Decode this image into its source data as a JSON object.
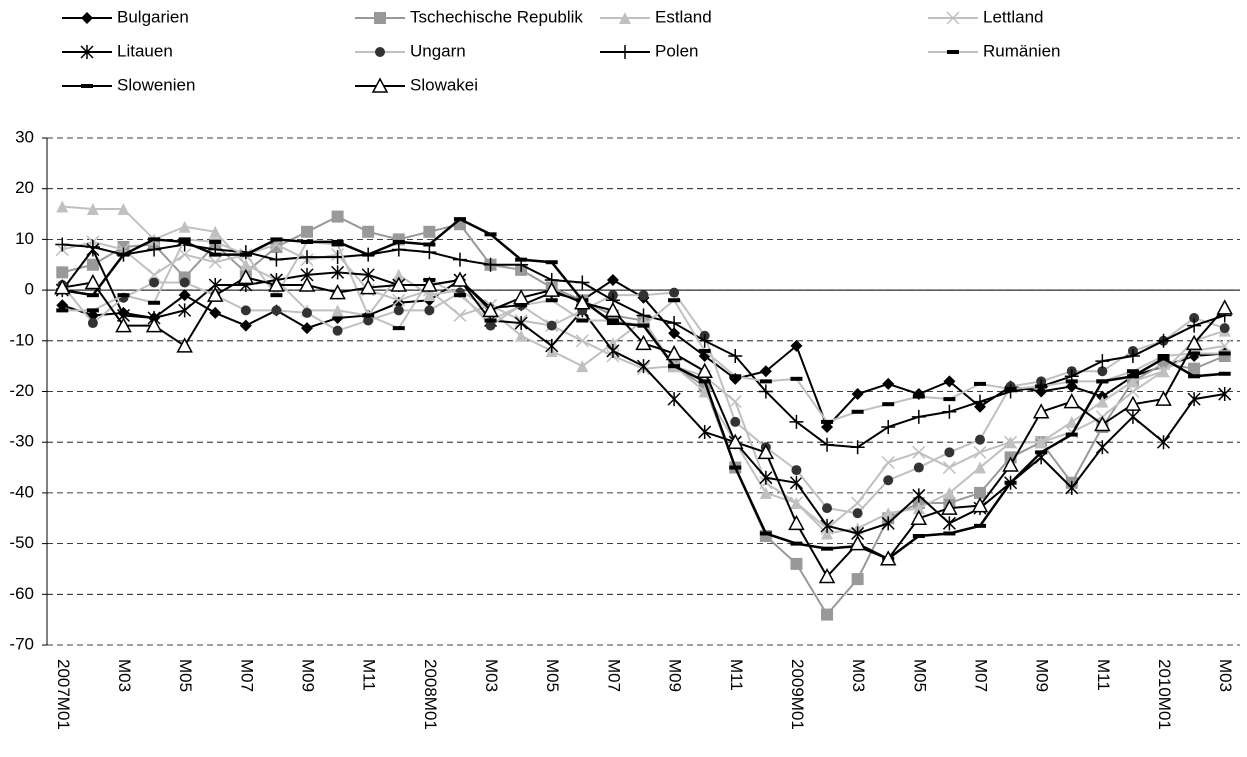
{
  "chart_data": {
    "type": "line",
    "categories": [
      "2007M01",
      null,
      "M03",
      null,
      "M05",
      null,
      "M07",
      null,
      "M09",
      null,
      "M11",
      null,
      "2008M01",
      null,
      "M03",
      null,
      "M05",
      null,
      "M07",
      null,
      "M09",
      null,
      "M11",
      null,
      "2009M01",
      null,
      "M03",
      null,
      "M05",
      null,
      "M07",
      null,
      "M09",
      null,
      "M11",
      null,
      "2010M01",
      null,
      "M03"
    ],
    "ylim": [
      -70,
      30
    ],
    "yticks": [
      30,
      20,
      10,
      0,
      -10,
      -20,
      -30,
      -40,
      -50,
      -60,
      -70
    ],
    "grid": true,
    "series": [
      {
        "name": "Bulgarien",
        "color": "#000000",
        "marker": "diamond",
        "marker_color": "#000000",
        "values": [
          -3,
          -5,
          -4.5,
          -5.5,
          -1,
          -4.5,
          -7,
          -4,
          -7.5,
          -5.5,
          -5,
          -2.5,
          -2,
          2,
          -3.5,
          -3,
          -0.5,
          -2,
          2,
          -1.5,
          -8.5,
          -13,
          -17.5,
          -16,
          -11,
          -27,
          -20.5,
          -18.5,
          -20.5,
          -18,
          -23,
          -19,
          -20,
          -19,
          -21,
          -17,
          -15,
          -13,
          -12.5
        ]
      },
      {
        "name": "Tschechische Republik",
        "color": "#999999",
        "marker": "square",
        "marker_color": "#999999",
        "values": [
          3.5,
          5,
          8.5,
          9,
          2.5,
          9,
          3.5,
          8.5,
          11.5,
          14.5,
          11.5,
          10,
          11.5,
          13,
          5,
          4,
          0.5,
          -2,
          -5,
          -6,
          -15,
          -19,
          -35,
          -48.5,
          -54,
          -64,
          -57,
          -45,
          -42,
          -42,
          -40,
          -33,
          -30,
          -38,
          -27,
          -18,
          -14.5,
          -15.5,
          -13
        ]
      },
      {
        "name": "Estland",
        "color": "#c0c0c0",
        "marker": "triangle",
        "marker_color": "#c0c0c0",
        "values": [
          16.5,
          16,
          16,
          10,
          12.5,
          11.5,
          5,
          2,
          -4,
          -4,
          -5,
          3,
          -1,
          0,
          -4,
          -9,
          -12,
          -15,
          -10.5,
          -6,
          -15,
          -20,
          -30,
          -40,
          -42,
          -48,
          -47,
          -44,
          -43,
          -40,
          -35,
          -30,
          -30,
          -26,
          -22,
          -18,
          -16,
          -10,
          -8
        ]
      },
      {
        "name": "Lettland",
        "color": "#c0c0c0",
        "marker": "x",
        "marker_color": "#c0c0c0",
        "values": [
          8,
          9.5,
          8,
          3,
          7,
          5.5,
          7,
          9,
          6,
          7,
          0,
          -2,
          0,
          -5,
          -3,
          -6,
          -7,
          -10,
          -13,
          -15.5,
          -15,
          -17,
          -22,
          -38,
          -42,
          -47,
          -42,
          -34,
          -32,
          -35,
          -32,
          -30,
          -30,
          -28,
          -25,
          -20,
          -16,
          -12,
          -11
        ]
      },
      {
        "name": "Litauen",
        "color": "#000000",
        "marker": "star",
        "marker_color": "#000000",
        "values": [
          0,
          8,
          -5,
          -5.5,
          -4,
          1,
          1,
          2,
          3,
          3.5,
          3,
          1,
          1,
          2,
          -6,
          -6.5,
          -11,
          -4,
          -12,
          -15,
          -21.5,
          -28,
          -30,
          -37,
          -38,
          -46.5,
          -48,
          -46,
          -40.5,
          -46,
          -43,
          -38,
          -33,
          -39,
          -31,
          -25,
          -30,
          -21.5,
          -20.5
        ]
      },
      {
        "name": "Ungarn",
        "color": "#c0c0c0",
        "marker": "circle",
        "marker_color": "#333333",
        "values": [
          1,
          -6.5,
          -1.5,
          1.5,
          1.5,
          -1,
          -4,
          -4,
          -4.5,
          -8,
          -6,
          -4,
          -4,
          -0.5,
          -7,
          -3,
          -7,
          -4,
          -1,
          -1,
          -0.5,
          -9,
          -26,
          -31,
          -35.5,
          -43,
          -44,
          -37.5,
          -35,
          -32,
          -29.5,
          -19,
          -18,
          -16,
          -16,
          -12,
          -10,
          -5.5,
          -7.5
        ]
      },
      {
        "name": "Polen",
        "color": "#000000",
        "marker": "plus",
        "marker_color": "#000000",
        "values": [
          9,
          8.5,
          7,
          8,
          9,
          8,
          7.5,
          6,
          6.5,
          6.5,
          7,
          8,
          7.5,
          6,
          5,
          5,
          2,
          1.5,
          -2,
          -5,
          -6.5,
          -10,
          -13,
          -20,
          -26,
          -30.5,
          -31,
          -27,
          -25,
          -24,
          -22,
          -20,
          -19,
          -17,
          -14,
          -13,
          -10,
          -7,
          -5
        ]
      },
      {
        "name": "Rumänien",
        "color": "#c0c0c0",
        "marker": "dash",
        "marker_color": "#000000",
        "values": [
          -4,
          -4,
          -1,
          -2.5,
          10,
          9.5,
          7,
          -1,
          9.5,
          9,
          -5,
          -7.5,
          2,
          -1,
          -6,
          -3,
          -2,
          -6,
          -6,
          -7,
          -2,
          -12,
          -17,
          -18,
          -17.5,
          -26,
          -24,
          -22.5,
          -21,
          -21.5,
          -18.5,
          -19.5,
          -19,
          -18,
          -18,
          -16,
          -13,
          -12.5,
          -12.5
        ]
      },
      {
        "name": "Slowenien",
        "color": "#000000",
        "marker": "dash",
        "marker_color": "#000000",
        "values": [
          0,
          -1,
          7,
          10,
          9.5,
          7,
          7,
          10,
          9.5,
          9.5,
          7,
          9.5,
          9,
          14,
          11,
          6,
          5.5,
          -2,
          -6.5,
          -7,
          -15,
          -18,
          -35,
          -48,
          -50,
          -51,
          -50.5,
          -53,
          -48.5,
          -48,
          -46.5,
          -38,
          -32,
          -28.5,
          -18,
          -17,
          -13.5,
          -17,
          -16.5
        ]
      },
      {
        "name": "Slowakei",
        "color": "#000000",
        "marker": "triangle-open",
        "marker_color": "#000000",
        "values": [
          0.5,
          1.5,
          -7,
          -7,
          -11,
          -1,
          2.5,
          1,
          1,
          -0.5,
          0.5,
          1,
          1,
          2,
          -4,
          -1.5,
          0,
          -2.5,
          -4,
          -10.5,
          -12.5,
          -16,
          -30,
          -32,
          -46,
          -56.5,
          -50,
          -53,
          -45,
          -43,
          -42.5,
          -34.5,
          -24,
          -22,
          -26.5,
          -22.5,
          -21.5,
          -10.5,
          -3.5
        ]
      }
    ]
  }
}
